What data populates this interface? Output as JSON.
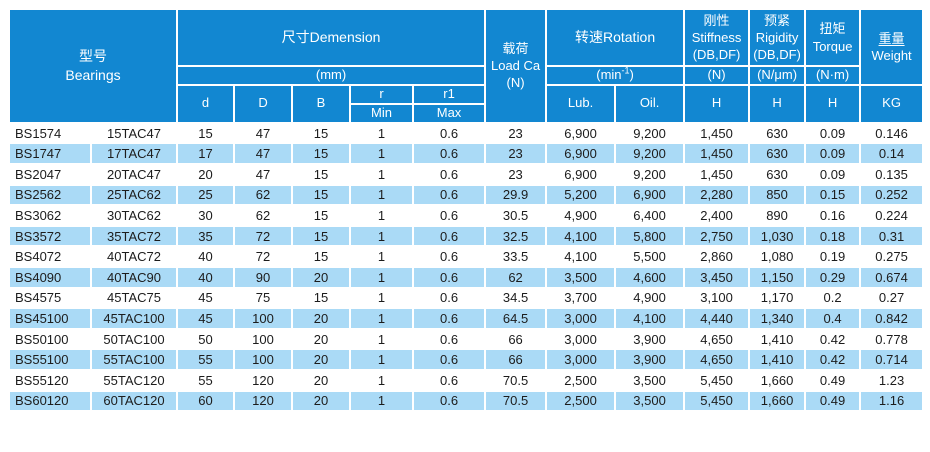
{
  "colors": {
    "header_bg": "#1287d1",
    "stripe_bg": "#aadaf6",
    "row_bg": "#ffffff",
    "header_text": "#ffffff",
    "cell_text": "#1c1c1c"
  },
  "header": {
    "model": {
      "zh": "型号",
      "en": "Bearings"
    },
    "dimension": {
      "title": "尺寸Demension",
      "unit": "(mm)",
      "d": "d",
      "D": "D",
      "B": "B",
      "r": "r",
      "r_sub": "Min",
      "r1": "r1",
      "r1_sub": "Max"
    },
    "load": {
      "zh": "载荷",
      "en": "Load Ca",
      "unit": "(N)"
    },
    "rotation": {
      "title": "转速Rotation",
      "unit_open": "(min",
      "unit_sup": "-1",
      "unit_close": ")",
      "lub": "Lub.",
      "oil": "Oil."
    },
    "stiffness": {
      "zh": "刚性",
      "en": "Stiffness",
      "pair": "(DB,DF)",
      "unit": "(N)",
      "col": "H"
    },
    "rigidity": {
      "zh": "预紧",
      "en": "Rigidity",
      "pair": "(DB,DF)",
      "unit": "(N/μm)",
      "col": "H"
    },
    "torque": {
      "zh": "扭矩",
      "en": "Torque",
      "unit": "(N·m)",
      "col": "H"
    },
    "weight": {
      "zh": "重量",
      "en": "Weight",
      "col": "KG"
    }
  },
  "rows": [
    [
      "BS1574",
      "15TAC47",
      "15",
      "47",
      "15",
      "1",
      "0.6",
      "23",
      "6,900",
      "9,200",
      "1,450",
      "630",
      "0.09",
      "0.146"
    ],
    [
      "BS1747",
      "17TAC47",
      "17",
      "47",
      "15",
      "1",
      "0.6",
      "23",
      "6,900",
      "9,200",
      "1,450",
      "630",
      "0.09",
      "0.14"
    ],
    [
      "BS2047",
      "20TAC47",
      "20",
      "47",
      "15",
      "1",
      "0.6",
      "23",
      "6,900",
      "9,200",
      "1,450",
      "630",
      "0.09",
      "0.135"
    ],
    [
      "BS2562",
      "25TAC62",
      "25",
      "62",
      "15",
      "1",
      "0.6",
      "29.9",
      "5,200",
      "6,900",
      "2,280",
      "850",
      "0.15",
      "0.252"
    ],
    [
      "BS3062",
      "30TAC62",
      "30",
      "62",
      "15",
      "1",
      "0.6",
      "30.5",
      "4,900",
      "6,400",
      "2,400",
      "890",
      "0.16",
      "0.224"
    ],
    [
      "BS3572",
      "35TAC72",
      "35",
      "72",
      "15",
      "1",
      "0.6",
      "32.5",
      "4,100",
      "5,800",
      "2,750",
      "1,030",
      "0.18",
      "0.31"
    ],
    [
      "BS4072",
      "40TAC72",
      "40",
      "72",
      "15",
      "1",
      "0.6",
      "33.5",
      "4,100",
      "5,500",
      "2,860",
      "1,080",
      "0.19",
      "0.275"
    ],
    [
      "BS4090",
      "40TAC90",
      "40",
      "90",
      "20",
      "1",
      "0.6",
      "62",
      "3,500",
      "4,600",
      "3,450",
      "1,150",
      "0.29",
      "0.674"
    ],
    [
      "BS4575",
      "45TAC75",
      "45",
      "75",
      "15",
      "1",
      "0.6",
      "34.5",
      "3,700",
      "4,900",
      "3,100",
      "1,170",
      "0.2",
      "0.27"
    ],
    [
      "BS45100",
      "45TAC100",
      "45",
      "100",
      "20",
      "1",
      "0.6",
      "64.5",
      "3,000",
      "4,100",
      "4,440",
      "1,340",
      "0.4",
      "0.842"
    ],
    [
      "BS50100",
      "50TAC100",
      "50",
      "100",
      "20",
      "1",
      "0.6",
      "66",
      "3,000",
      "3,900",
      "4,650",
      "1,410",
      "0.42",
      "0.778"
    ],
    [
      "BS55100",
      "55TAC100",
      "55",
      "100",
      "20",
      "1",
      "0.6",
      "66",
      "3,000",
      "3,900",
      "4,650",
      "1,410",
      "0.42",
      "0.714"
    ],
    [
      "BS55120",
      "55TAC120",
      "55",
      "120",
      "20",
      "1",
      "0.6",
      "70.5",
      "2,500",
      "3,500",
      "5,450",
      "1,660",
      "0.49",
      "1.23"
    ],
    [
      "BS60120",
      "60TAC120",
      "60",
      "120",
      "20",
      "1",
      "0.6",
      "70.5",
      "2,500",
      "3,500",
      "5,450",
      "1,660",
      "0.49",
      "1.16"
    ]
  ]
}
